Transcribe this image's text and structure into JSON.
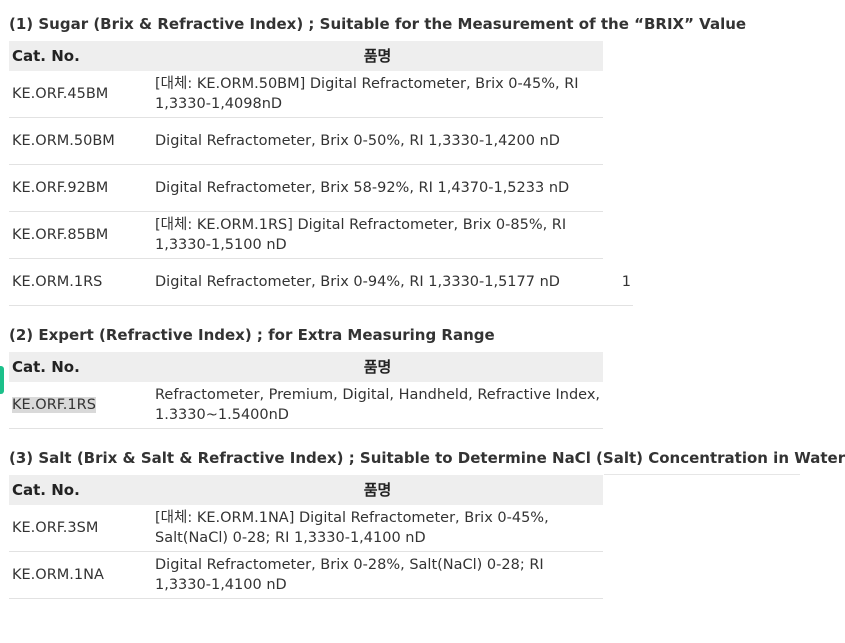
{
  "col_headers": {
    "cat": "Cat. No.",
    "name": "품명"
  },
  "sections": [
    {
      "heading": "(1) Sugar (Brix & Refractive Index) ; Suitable for the Measurement of the “BRIX” Value",
      "rows": [
        {
          "cat": "KE.ORF.45BM",
          "name": "[대체: KE.ORM.50BM] Digital Refractometer, Brix 0-45%, RI 1,3330-1,4098nD"
        },
        {
          "cat": "KE.ORM.50BM",
          "name": "Digital Refractometer, Brix 0-50%, RI 1,3330-1,4200 nD"
        },
        {
          "cat": "KE.ORF.92BM",
          "name": "Digital Refractometer, Brix 58-92%, RI 1,4370-1,5233 nD"
        },
        {
          "cat": "KE.ORF.85BM",
          "name": "[대체: KE.ORM.1RS] Digital Refractometer, Brix 0-85%, RI 1,3330-1,5100 nD"
        },
        {
          "cat": "KE.ORM.1RS",
          "name": "Digital Refractometer, Brix 0-94%, RI 1,3330-1,5177 nD",
          "extra": "1"
        }
      ]
    },
    {
      "heading": "(2) Expert (Refractive Index) ; for Extra Measuring Range",
      "rows": [
        {
          "cat": "KE.ORF.1RS",
          "name": "Refractometer, Premium, Digital, Handheld, Refractive Index, 1.3330~1.5400nD"
        }
      ]
    },
    {
      "heading": "(3) Salt (Brix & Salt & Refractive Index) ; Suitable to Determine NaCl (Salt) Concentration in Water",
      "rows": [
        {
          "cat": "KE.ORF.3SM",
          "name": "[대체: KE.ORM.1NA] Digital Refractometer, Brix 0-45%, Salt(NaCl) 0-28; RI 1,3330-1,4100 nD"
        },
        {
          "cat": "KE.ORM.1NA",
          "name": "Digital Refractometer, Brix 0-28%, Salt(NaCl) 0-28; RI 1,3330-1,4100 nD"
        }
      ]
    }
  ]
}
